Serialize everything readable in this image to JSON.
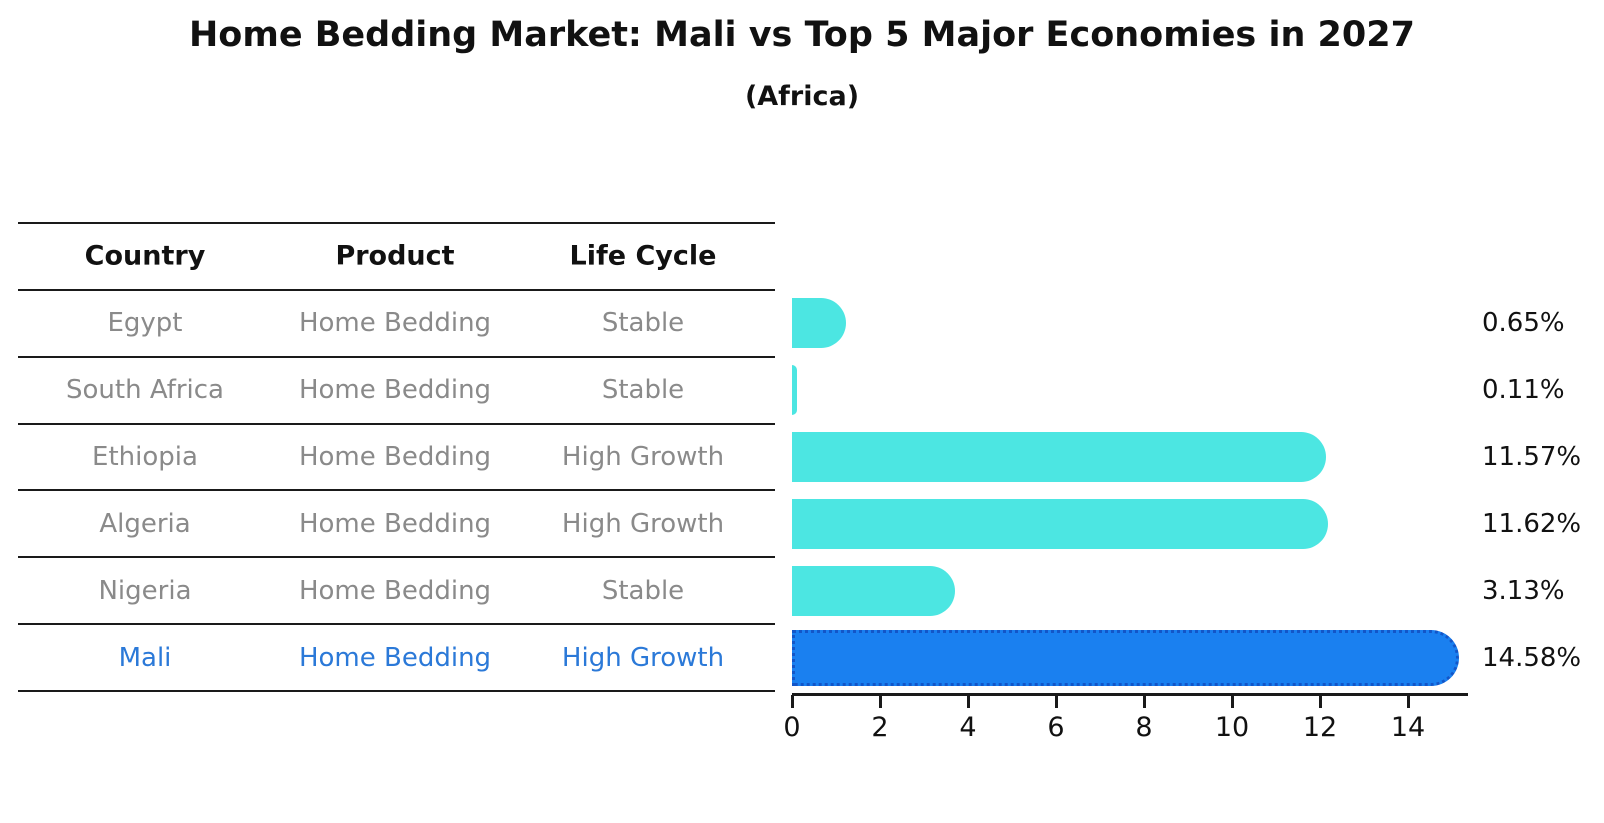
{
  "header": {
    "title": "Home Bedding Market: Mali vs Top 5 Major Economies in 2027",
    "subtitle": "(Africa)"
  },
  "table": {
    "columns": [
      "Country",
      "Product",
      "Life Cycle"
    ],
    "rows": [
      {
        "country": "Egypt",
        "product": "Home Bedding",
        "life_cycle": "Stable",
        "highlight": false
      },
      {
        "country": "South Africa",
        "product": "Home Bedding",
        "life_cycle": "Stable",
        "highlight": false
      },
      {
        "country": "Ethiopia",
        "product": "Home Bedding",
        "life_cycle": "High Growth",
        "highlight": false
      },
      {
        "country": "Algeria",
        "product": "Home Bedding",
        "life_cycle": "High Growth",
        "highlight": false
      },
      {
        "country": "Nigeria",
        "product": "Home Bedding",
        "life_cycle": "Stable",
        "highlight": false
      },
      {
        "country": "Mali",
        "product": "Home Bedding",
        "life_cycle": "High Growth",
        "highlight": true
      }
    ]
  },
  "chart_data": {
    "type": "bar",
    "orientation": "horizontal",
    "title": "Home Bedding Market: Mali vs Top 5 Major Economies in 2027",
    "subtitle": "(Africa)",
    "categories": [
      "Egypt",
      "South Africa",
      "Ethiopia",
      "Algeria",
      "Nigeria",
      "Mali"
    ],
    "values": [
      0.65,
      0.11,
      11.57,
      11.62,
      3.13,
      14.58
    ],
    "value_labels": [
      "0.65%",
      "0.11%",
      "11.57%",
      "11.62%",
      "3.13%",
      "14.58%"
    ],
    "x_ticks": [
      0,
      2,
      4,
      6,
      8,
      10,
      12,
      14
    ],
    "xlim": [
      0,
      15.4
    ],
    "grid": false,
    "legend": "none",
    "highlight_index": 5
  },
  "colors": {
    "bar_default": "#4ce6e2",
    "bar_highlight": "#1a80f0",
    "bar_highlight_edge": "#1356c8",
    "row_text": "#8a8a8a",
    "row_text_highlight": "#2b79d8",
    "axis": "#1a1a1a",
    "text": "#111111"
  }
}
